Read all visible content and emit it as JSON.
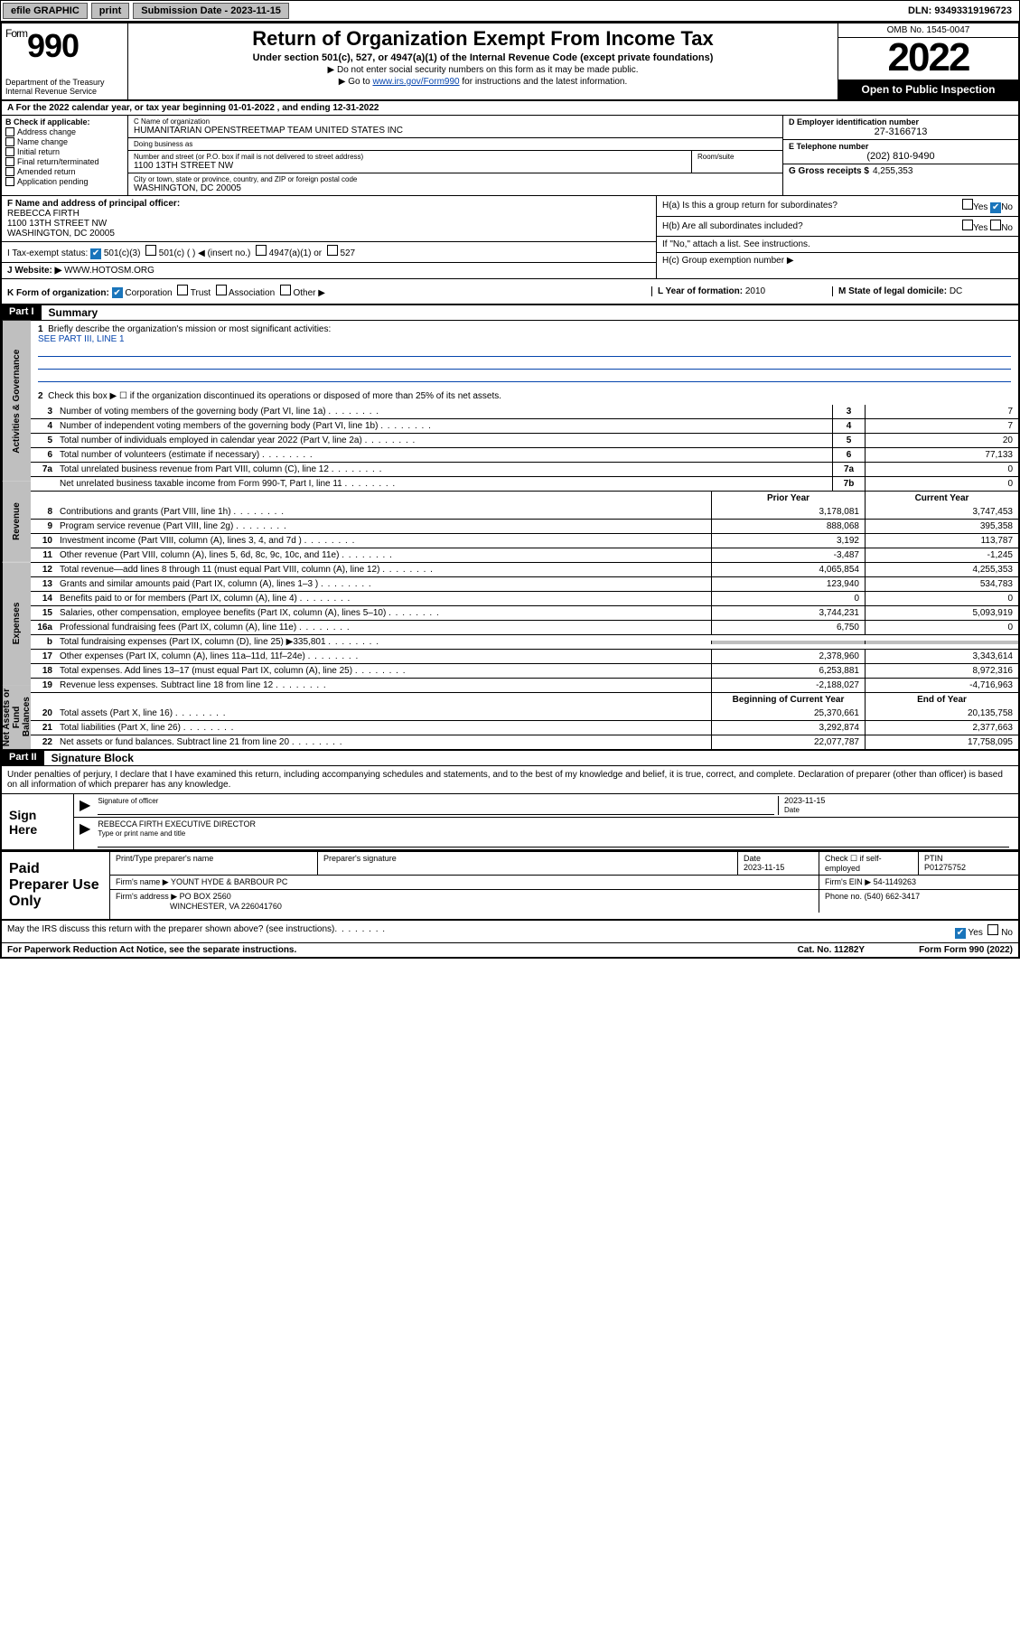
{
  "topbar": {
    "efile": "efile GRAPHIC",
    "print": "print",
    "submission": "Submission Date - 2023-11-15",
    "dln": "DLN: 93493319196723"
  },
  "header": {
    "form_prefix": "Form",
    "form_number": "990",
    "title": "Return of Organization Exempt From Income Tax",
    "sub1": "Under section 501(c), 527, or 4947(a)(1) of the Internal Revenue Code (except private foundations)",
    "sub2": "▶ Do not enter social security numbers on this form as it may be made public.",
    "sub3_pre": "▶ Go to ",
    "sub3_link": "www.irs.gov/Form990",
    "sub3_post": " for instructions and the latest information.",
    "dept": "Department of the Treasury\nInternal Revenue Service",
    "omb": "OMB No. 1545-0047",
    "year": "2022",
    "inspection": "Open to Public Inspection"
  },
  "row_a": {
    "prefix": "A For the 2022 calendar year, or tax year beginning ",
    "begin": "01-01-2022",
    "mid": " , and ending ",
    "end": "12-31-2022"
  },
  "section_b": {
    "label": "B Check if applicable:",
    "items": [
      "Address change",
      "Name change",
      "Initial return",
      "Final return/terminated",
      "Amended return",
      "Application pending"
    ]
  },
  "section_c": {
    "name_label": "C Name of organization",
    "name": "HUMANITARIAN OPENSTREETMAP TEAM UNITED STATES INC",
    "dba_label": "Doing business as",
    "dba": "",
    "addr_label": "Number and street (or P.O. box if mail is not delivered to street address)",
    "addr": "1100 13TH STREET NW",
    "suite_label": "Room/suite",
    "city_label": "City or town, state or province, country, and ZIP or foreign postal code",
    "city": "WASHINGTON, DC  20005"
  },
  "section_d": {
    "ein_label": "D Employer identification number",
    "ein": "27-3166713",
    "phone_label": "E Telephone number",
    "phone": "(202) 810-9490",
    "receipts_label": "G Gross receipts $",
    "receipts": "4,255,353"
  },
  "section_f": {
    "label": "F Name and address of principal officer:",
    "name": "REBECCA FIRTH",
    "addr1": "1100 13TH STREET NW",
    "addr2": "WASHINGTON, DC  20005"
  },
  "section_h": {
    "ha": "H(a)  Is this a group return for subordinates?",
    "hb": "H(b)  Are all subordinates included?",
    "hb_note": "If \"No,\" attach a list. See instructions.",
    "hc": "H(c)  Group exemption number ▶",
    "yes": "Yes",
    "no": "No"
  },
  "section_i": {
    "label": "I   Tax-exempt status:",
    "opt1": "501(c)(3)",
    "opt2": "501(c) (   ) ◀ (insert no.)",
    "opt3": "4947(a)(1) or",
    "opt4": "527"
  },
  "section_j": {
    "label": "J   Website: ▶",
    "value": "WWW.HOTOSM.ORG"
  },
  "section_k": {
    "label": "K Form of organization:",
    "opts": [
      "Corporation",
      "Trust",
      "Association",
      "Other ▶"
    ],
    "l_label": "L Year of formation:",
    "l_val": "2010",
    "m_label": "M State of legal domicile:",
    "m_val": "DC"
  },
  "part1": {
    "header": "Part I",
    "title": "Summary",
    "side_labels": [
      "Activities & Governance",
      "Revenue",
      "Expenses",
      "Net Assets or Fund Balances"
    ],
    "q1": "Briefly describe the organization's mission or most significant activities:",
    "q1_val": "SEE PART III, LINE 1",
    "q2": "Check this box ▶ ☐  if the organization discontinued its operations or disposed of more than 25% of its net assets.",
    "rows_gov": [
      {
        "n": "3",
        "d": "Number of voting members of the governing body (Part VI, line 1a)",
        "box": "3",
        "v": "7"
      },
      {
        "n": "4",
        "d": "Number of independent voting members of the governing body (Part VI, line 1b)",
        "box": "4",
        "v": "7"
      },
      {
        "n": "5",
        "d": "Total number of individuals employed in calendar year 2022 (Part V, line 2a)",
        "box": "5",
        "v": "20"
      },
      {
        "n": "6",
        "d": "Total number of volunteers (estimate if necessary)",
        "box": "6",
        "v": "77,133"
      },
      {
        "n": "7a",
        "d": "Total unrelated business revenue from Part VIII, column (C), line 12",
        "box": "7a",
        "v": "0"
      },
      {
        "n": "",
        "d": "Net unrelated business taxable income from Form 990-T, Part I, line 11",
        "box": "7b",
        "v": "0"
      }
    ],
    "col_prior": "Prior Year",
    "col_current": "Current Year",
    "rows_rev": [
      {
        "n": "8",
        "d": "Contributions and grants (Part VIII, line 1h)",
        "v1": "3,178,081",
        "v2": "3,747,453"
      },
      {
        "n": "9",
        "d": "Program service revenue (Part VIII, line 2g)",
        "v1": "888,068",
        "v2": "395,358"
      },
      {
        "n": "10",
        "d": "Investment income (Part VIII, column (A), lines 3, 4, and 7d )",
        "v1": "3,192",
        "v2": "113,787"
      },
      {
        "n": "11",
        "d": "Other revenue (Part VIII, column (A), lines 5, 6d, 8c, 9c, 10c, and 11e)",
        "v1": "-3,487",
        "v2": "-1,245"
      },
      {
        "n": "12",
        "d": "Total revenue—add lines 8 through 11 (must equal Part VIII, column (A), line 12)",
        "v1": "4,065,854",
        "v2": "4,255,353"
      }
    ],
    "rows_exp": [
      {
        "n": "13",
        "d": "Grants and similar amounts paid (Part IX, column (A), lines 1–3 )",
        "v1": "123,940",
        "v2": "534,783"
      },
      {
        "n": "14",
        "d": "Benefits paid to or for members (Part IX, column (A), line 4)",
        "v1": "0",
        "v2": "0"
      },
      {
        "n": "15",
        "d": "Salaries, other compensation, employee benefits (Part IX, column (A), lines 5–10)",
        "v1": "3,744,231",
        "v2": "5,093,919"
      },
      {
        "n": "16a",
        "d": "Professional fundraising fees (Part IX, column (A), line 11e)",
        "v1": "6,750",
        "v2": "0"
      },
      {
        "n": "b",
        "d": "Total fundraising expenses (Part IX, column (D), line 25) ▶335,801",
        "v1": "",
        "v2": "",
        "shade": true
      },
      {
        "n": "17",
        "d": "Other expenses (Part IX, column (A), lines 11a–11d, 11f–24e)",
        "v1": "2,378,960",
        "v2": "3,343,614"
      },
      {
        "n": "18",
        "d": "Total expenses. Add lines 13–17 (must equal Part IX, column (A), line 25)",
        "v1": "6,253,881",
        "v2": "8,972,316"
      },
      {
        "n": "19",
        "d": "Revenue less expenses. Subtract line 18 from line 12",
        "v1": "-2,188,027",
        "v2": "-4,716,963"
      }
    ],
    "col_begin": "Beginning of Current Year",
    "col_end": "End of Year",
    "rows_net": [
      {
        "n": "20",
        "d": "Total assets (Part X, line 16)",
        "v1": "25,370,661",
        "v2": "20,135,758"
      },
      {
        "n": "21",
        "d": "Total liabilities (Part X, line 26)",
        "v1": "3,292,874",
        "v2": "2,377,663"
      },
      {
        "n": "22",
        "d": "Net assets or fund balances. Subtract line 21 from line 20",
        "v1": "22,077,787",
        "v2": "17,758,095"
      }
    ]
  },
  "part2": {
    "header": "Part II",
    "title": "Signature Block",
    "text": "Under penalties of perjury, I declare that I have examined this return, including accompanying schedules and statements, and to the best of my knowledge and belief, it is true, correct, and complete. Declaration of preparer (other than officer) is based on all information of which preparer has any knowledge.",
    "sign_here": "Sign Here",
    "sig_officer": "Signature of officer",
    "sig_date_label": "Date",
    "sig_date": "2023-11-15",
    "officer_name": "REBECCA FIRTH  EXECUTIVE DIRECTOR",
    "name_title_label": "Type or print name and title"
  },
  "paid_prep": {
    "title": "Paid Preparer Use Only",
    "h_name": "Print/Type preparer's name",
    "h_sig": "Preparer's signature",
    "h_date": "Date",
    "date": "2023-11-15",
    "h_check": "Check ☐ if self-employed",
    "h_ptin": "PTIN",
    "ptin": "P01275752",
    "firm_name_label": "Firm's name    ▶",
    "firm_name": "YOUNT HYDE & BARBOUR PC",
    "firm_ein_label": "Firm's EIN ▶",
    "firm_ein": "54-1149263",
    "firm_addr_label": "Firm's address ▶",
    "firm_addr1": "PO BOX 2560",
    "firm_addr2": "WINCHESTER, VA  226041760",
    "phone_label": "Phone no.",
    "phone": "(540) 662-3417"
  },
  "footer": {
    "discuss": "May the IRS discuss this return with the preparer shown above? (see instructions)",
    "yes": "Yes",
    "no": "No",
    "paperwork": "For Paperwork Reduction Act Notice, see the separate instructions.",
    "cat": "Cat. No. 11282Y",
    "form": "Form 990 (2022)"
  }
}
